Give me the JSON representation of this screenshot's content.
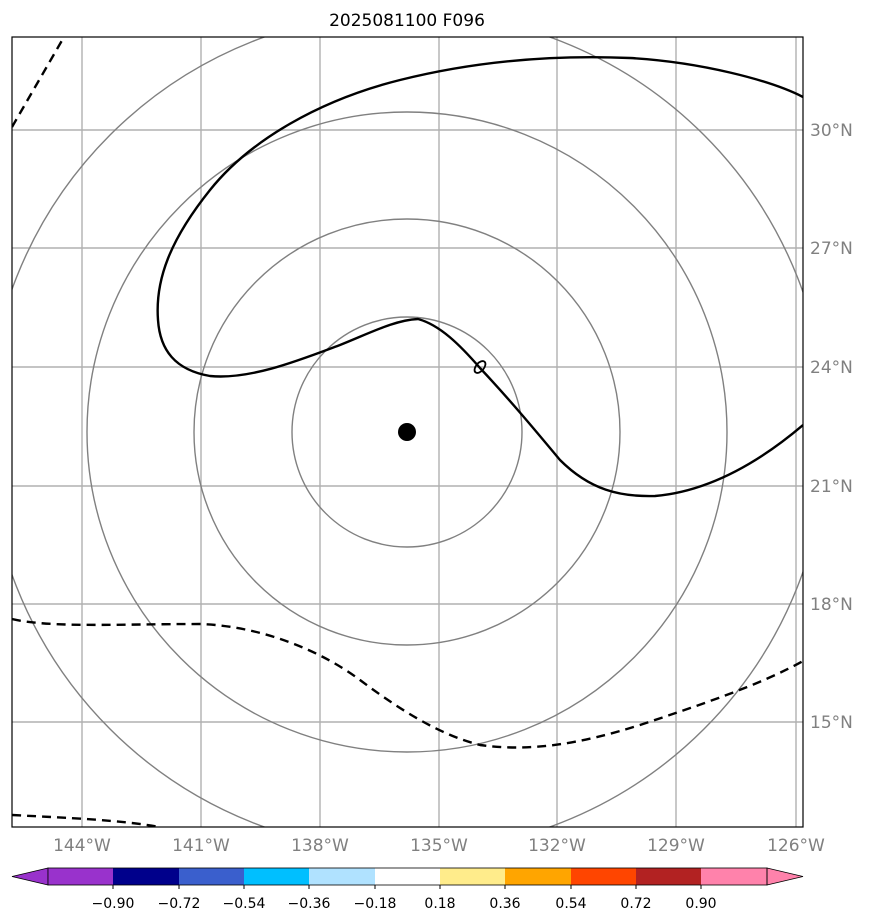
{
  "title": "2025081100 F096",
  "map": {
    "lon_labels": [
      "144°W",
      "141°W",
      "138°W",
      "135°W",
      "132°W",
      "129°W",
      "126°W"
    ],
    "lat_labels": [
      "30°N",
      "27°N",
      "24°N",
      "21°N",
      "18°N",
      "15°N"
    ],
    "gridline_color": "#b0b0b0",
    "range_ring_color": "#808080",
    "contour_color": "#000000",
    "center_marker": "storm-center-dot"
  },
  "colorbar": {
    "ticks": [
      "−0.90",
      "−0.72",
      "−0.54",
      "−0.36",
      "−0.18",
      "0.18",
      "0.36",
      "0.54",
      "0.72",
      "0.90"
    ],
    "colors": [
      "#9932cc",
      "#00008b",
      "#3a5fcd",
      "#00bfff",
      "#b0e2ff",
      "#ffffff",
      "#ffec8b",
      "#ffa500",
      "#ff4500",
      "#b22222",
      "#ff82ab"
    ],
    "extend": "both"
  }
}
